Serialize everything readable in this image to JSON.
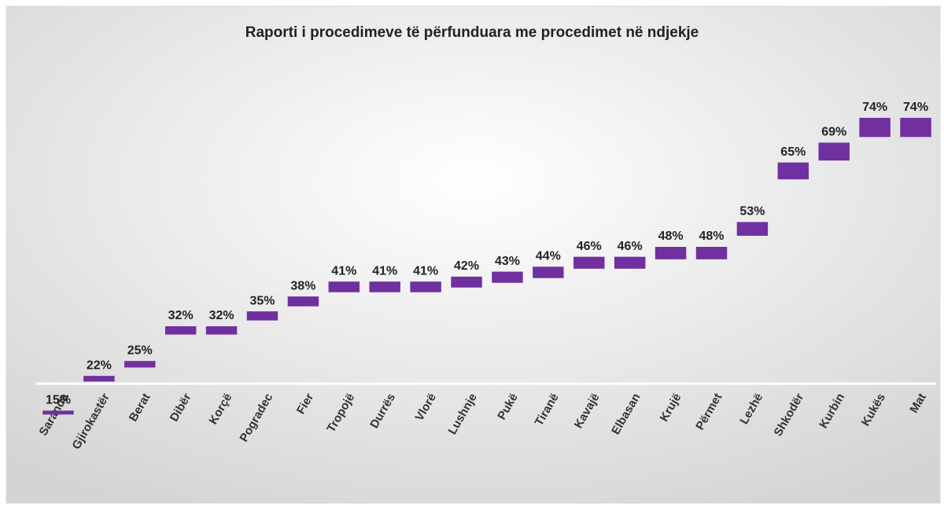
{
  "chart_data": {
    "type": "floating-bar",
    "title": "Raporti i procedimeve të përfunduara me procedimet në ndjekje",
    "categories": [
      "Saranda",
      "Gjirokastër",
      "Berat",
      "Dibër",
      "Korçë",
      "Pogradec",
      "Fier",
      "Tropojë",
      "Durrës",
      "Vlorë",
      "Lushnje",
      "Pukë",
      "Tiranë",
      "Kavajë",
      "Elbasan",
      "Krujë",
      "Përmet",
      "Lezhë",
      "Shkodër",
      "Kurbin",
      "Kukës",
      "Mat"
    ],
    "values": [
      15,
      22,
      25,
      32,
      32,
      35,
      38,
      41,
      41,
      41,
      42,
      43,
      44,
      46,
      46,
      48,
      48,
      53,
      65,
      69,
      74,
      74
    ],
    "value_labels": [
      "15%",
      "22%",
      "25%",
      "32%",
      "32%",
      "35%",
      "38%",
      "41%",
      "41%",
      "41%",
      "42%",
      "43%",
      "44%",
      "46%",
      "46%",
      "48%",
      "48%",
      "53%",
      "65%",
      "69%",
      "74%",
      "74%"
    ],
    "color": "#7030a0",
    "ylim": [
      0,
      80
    ]
  }
}
